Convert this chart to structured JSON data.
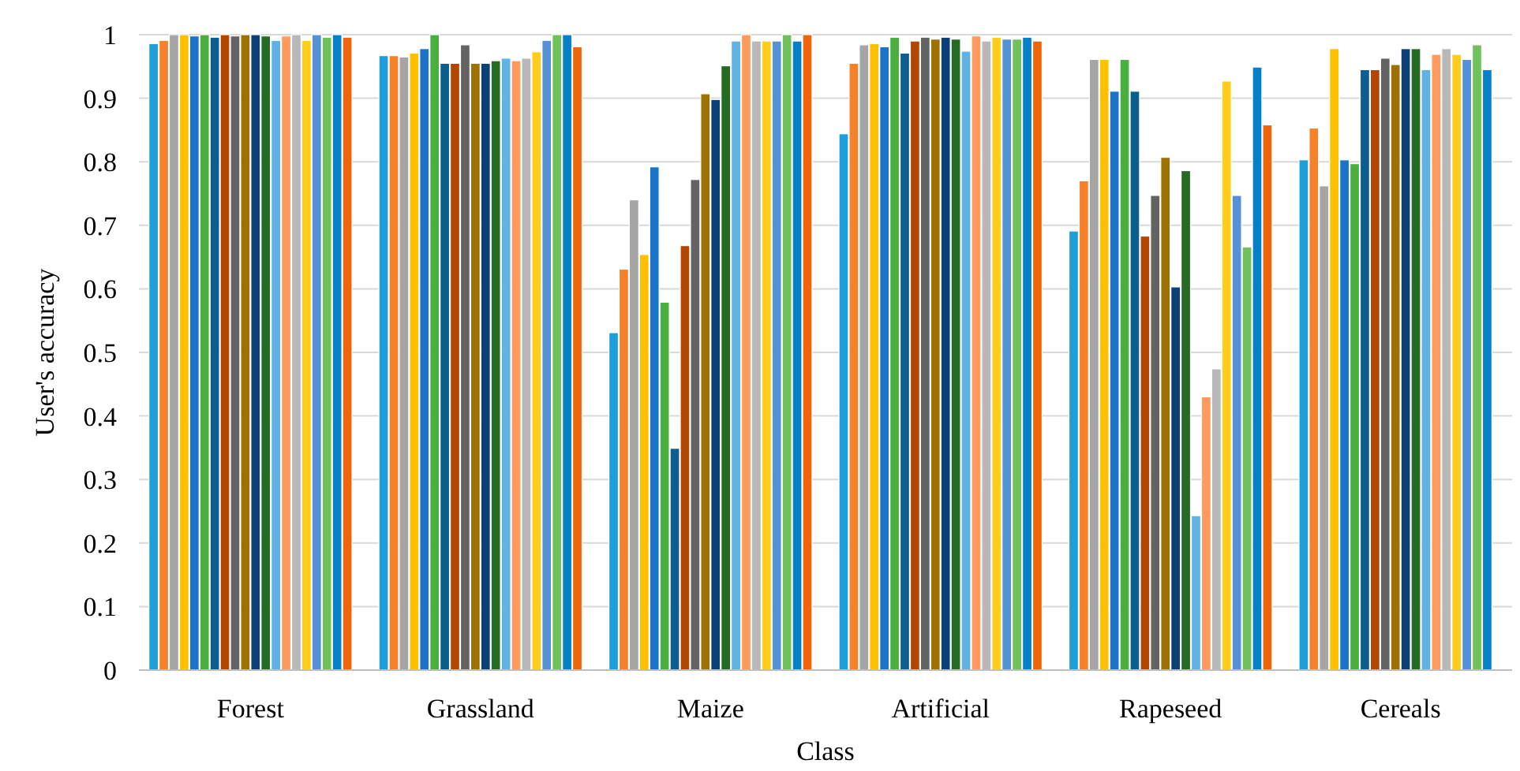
{
  "chart_data": {
    "type": "bar",
    "xlabel": "Class",
    "ylabel": "User's accuracy",
    "categories": [
      "Forest",
      "Grassland",
      "Maize",
      "Artificial",
      "Rapeseed",
      "Cereals"
    ],
    "ylim": [
      0,
      1
    ],
    "yticks": [
      0,
      0.1,
      0.2,
      0.3,
      0.4,
      0.5,
      0.6,
      0.7,
      0.8,
      0.9,
      1
    ],
    "grid": "y",
    "series": [
      {
        "color": "#1f9fd9",
        "values": [
          0.986,
          0.967,
          0.531,
          0.844,
          0.691,
          0.803
        ]
      },
      {
        "color": "#f5822a",
        "values": [
          0.991,
          0.967,
          0.631,
          0.955,
          0.77,
          0.853
        ]
      },
      {
        "color": "#a5a5a5",
        "values": [
          1,
          0.965,
          0.74,
          0.984,
          0.961,
          0.762
        ]
      },
      {
        "color": "#ffc000",
        "values": [
          1,
          0.971,
          0.654,
          0.986,
          0.961,
          0.978
        ]
      },
      {
        "color": "#1b74c9",
        "values": [
          0.998,
          0.978,
          0.792,
          0.981,
          0.911,
          0.803
        ]
      },
      {
        "color": "#4aaf3f",
        "values": [
          1,
          1,
          0.579,
          0.996,
          0.961,
          0.797
        ]
      },
      {
        "color": "#0b5e8e",
        "values": [
          0.996,
          0.955,
          0.349,
          0.971,
          0.911,
          0.945
        ]
      },
      {
        "color": "#b34700",
        "values": [
          1,
          0.955,
          0.668,
          0.99,
          0.683,
          0.945
        ]
      },
      {
        "color": "#636363",
        "values": [
          0.998,
          0.984,
          0.772,
          0.996,
          0.747,
          0.963
        ]
      },
      {
        "color": "#9e7200",
        "values": [
          1,
          0.955,
          0.907,
          0.993,
          0.807,
          0.953
        ]
      },
      {
        "color": "#0b4177",
        "values": [
          1,
          0.955,
          0.898,
          0.996,
          0.603,
          0.978
        ]
      },
      {
        "color": "#266b24",
        "values": [
          0.998,
          0.959,
          0.951,
          0.993,
          0.786,
          0.978
        ]
      },
      {
        "color": "#5fb2e3",
        "values": [
          0.991,
          0.963,
          0.99,
          0.974,
          0.243,
          0.945
        ]
      },
      {
        "color": "#ff9a5c",
        "values": [
          0.998,
          0.959,
          1,
          0.998,
          0.43,
          0.969
        ]
      },
      {
        "color": "#b8b8b8",
        "values": [
          1,
          0.963,
          0.99,
          0.99,
          0.474,
          0.978
        ]
      },
      {
        "color": "#ffcd1a",
        "values": [
          0.991,
          0.973,
          0.99,
          0.996,
          0.927,
          0.969
        ]
      },
      {
        "color": "#5591d6",
        "values": [
          1,
          0.991,
          0.99,
          0.993,
          0.747,
          0.961
        ]
      },
      {
        "color": "#70c15a",
        "values": [
          0.996,
          1,
          1,
          0.993,
          0.666,
          0.984
        ]
      },
      {
        "color": "#0680c8",
        "values": [
          1,
          1,
          0.99,
          0.996,
          0.949,
          0.945
        ]
      },
      {
        "color": "#f0640a",
        "values": [
          0.996,
          0.981,
          1,
          0.99,
          0.858,
          null
        ]
      }
    ]
  }
}
